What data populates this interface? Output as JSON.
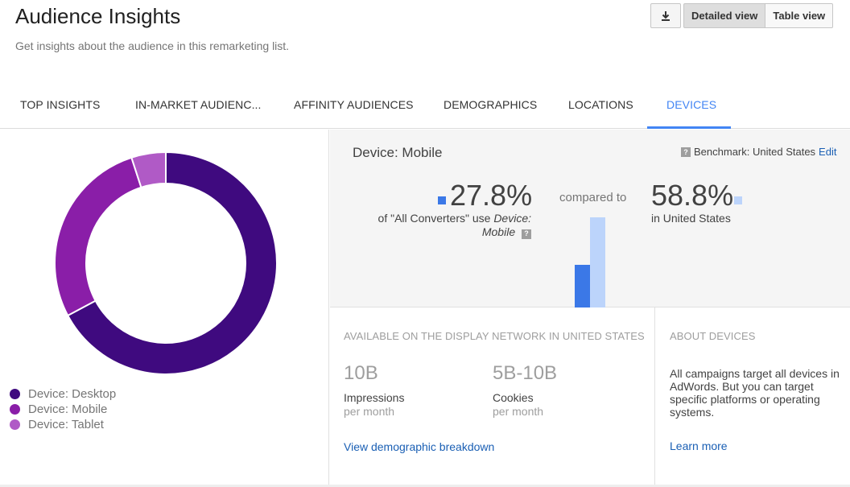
{
  "header": {
    "title": "Audience Insights",
    "subtitle": "Get insights about the audience in this remarketing list.",
    "download_icon": "download-icon",
    "view_buttons": [
      "Detailed view",
      "Table view"
    ]
  },
  "tabs": [
    {
      "label": "TOP INSIGHTS",
      "active": false
    },
    {
      "label": "IN-MARKET AUDIENC...",
      "active": false
    },
    {
      "label": "AFFINITY AUDIENCES",
      "active": false
    },
    {
      "label": "DEMOGRAPHICS",
      "active": false
    },
    {
      "label": "LOCATIONS",
      "active": false
    },
    {
      "label": "DEVICES",
      "active": true
    }
  ],
  "chart_data": {
    "type": "pie",
    "categories": [
      "Device: Desktop",
      "Device: Mobile",
      "Device: Tablet"
    ],
    "values": [
      67.2,
      27.8,
      5.0
    ],
    "colors": [
      "#3f0a7f",
      "#8a1ea8",
      "#b05ac6"
    ],
    "donut": true,
    "legend": "bottom-left"
  },
  "detail": {
    "title": "Device: Mobile",
    "benchmark_label": "Benchmark:",
    "benchmark_value": "United States",
    "benchmark_edit": "Edit",
    "audience_pct": "27.8%",
    "audience_desc_1": "of \"All Converters\" use",
    "audience_desc_2": "Device:",
    "audience_desc_3": "Mobile",
    "compared_to": "compared to",
    "benchmark_pct": "58.8%",
    "benchmark_desc": "in United States",
    "bar_values": [
      27.8,
      58.8
    ],
    "bar_colors": [
      "#3b78e7",
      "#bcd4fb"
    ]
  },
  "available": {
    "heading": "AVAILABLE ON THE DISPLAY NETWORK IN UNITED STATES",
    "stats": [
      {
        "value": "10B",
        "label": "Impressions",
        "sub": "per month"
      },
      {
        "value": "5B-10B",
        "label": "Cookies",
        "sub": "per month"
      }
    ],
    "link": "View demographic breakdown"
  },
  "about": {
    "heading": "ABOUT DEVICES",
    "text": "All campaigns target all devices in AdWords. But you can target specific platforms or operating systems.",
    "link": "Learn more"
  }
}
